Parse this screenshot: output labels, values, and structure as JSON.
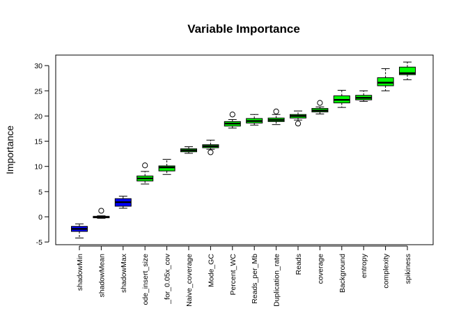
{
  "chart_data": {
    "type": "boxplot",
    "title": "Variable Importance",
    "xlabel": "",
    "ylabel": "Importance",
    "ylim": [
      -5,
      30
    ],
    "yticks": [
      -5,
      0,
      5,
      10,
      15,
      20,
      25,
      30
    ],
    "grid": false,
    "legend": "none",
    "categories": [
      "shadowMin",
      "shadowMean",
      "shadowMax",
      "ode_insert_size",
      "_for_0.05x_cov",
      "Naive_coverage",
      "Mode_GC",
      "Percent_WC",
      "Reads_per_Mb",
      "Duplication_rate",
      "Reads",
      "coverage",
      "Background",
      "entropy",
      "complexity",
      "spikiness"
    ],
    "colors": [
      "#0000ff",
      "#0000ff",
      "#0000ff",
      "#00ff00",
      "#00ff00",
      "#00ff00",
      "#00ff00",
      "#00ff00",
      "#00ff00",
      "#00ff00",
      "#00ff00",
      "#00ff00",
      "#00ff00",
      "#00ff00",
      "#00ff00",
      "#00ff00"
    ],
    "boxes": [
      {
        "min": -4.2,
        "q1": -2.9,
        "median": -2.4,
        "q3": -1.9,
        "max": -1.4,
        "outliers": []
      },
      {
        "min": -0.3,
        "q1": -0.2,
        "median": -0.05,
        "q3": 0.1,
        "max": 0.2,
        "outliers": [
          1.2
        ]
      },
      {
        "min": 1.7,
        "q1": 2.1,
        "median": 2.9,
        "q3": 3.6,
        "max": 4.1,
        "outliers": []
      },
      {
        "min": 6.5,
        "q1": 7.1,
        "median": 7.6,
        "q3": 8.1,
        "max": 9.0,
        "outliers": [
          10.2
        ]
      },
      {
        "min": 8.4,
        "q1": 9.1,
        "median": 9.8,
        "q3": 10.1,
        "max": 11.4,
        "outliers": []
      },
      {
        "min": 12.6,
        "q1": 12.9,
        "median": 13.2,
        "q3": 13.5,
        "max": 13.9,
        "outliers": []
      },
      {
        "min": 13.4,
        "q1": 13.7,
        "median": 14.0,
        "q3": 14.3,
        "max": 15.2,
        "outliers": [
          12.8
        ]
      },
      {
        "min": 17.6,
        "q1": 18.0,
        "median": 18.5,
        "q3": 18.9,
        "max": 19.3,
        "outliers": [
          20.3
        ]
      },
      {
        "min": 18.2,
        "q1": 18.6,
        "median": 19.0,
        "q3": 19.5,
        "max": 20.3,
        "outliers": []
      },
      {
        "min": 18.3,
        "q1": 18.9,
        "median": 19.2,
        "q3": 19.6,
        "max": 20.3,
        "outliers": [
          20.9
        ]
      },
      {
        "min": 19.2,
        "q1": 19.6,
        "median": 20.0,
        "q3": 20.3,
        "max": 21.0,
        "outliers": [
          18.5
        ]
      },
      {
        "min": 20.4,
        "q1": 20.8,
        "median": 21.1,
        "q3": 21.5,
        "max": 21.8,
        "outliers": [
          22.6
        ]
      },
      {
        "min": 21.7,
        "q1": 22.6,
        "median": 23.2,
        "q3": 24.0,
        "max": 25.1,
        "outliers": []
      },
      {
        "min": 22.9,
        "q1": 23.2,
        "median": 23.6,
        "q3": 24.1,
        "max": 25.0,
        "outliers": []
      },
      {
        "min": 25.0,
        "q1": 26.0,
        "median": 26.6,
        "q3": 27.6,
        "max": 29.4,
        "outliers": []
      },
      {
        "min": 27.2,
        "q1": 28.2,
        "median": 28.5,
        "q3": 29.7,
        "max": 30.7,
        "outliers": []
      }
    ]
  }
}
